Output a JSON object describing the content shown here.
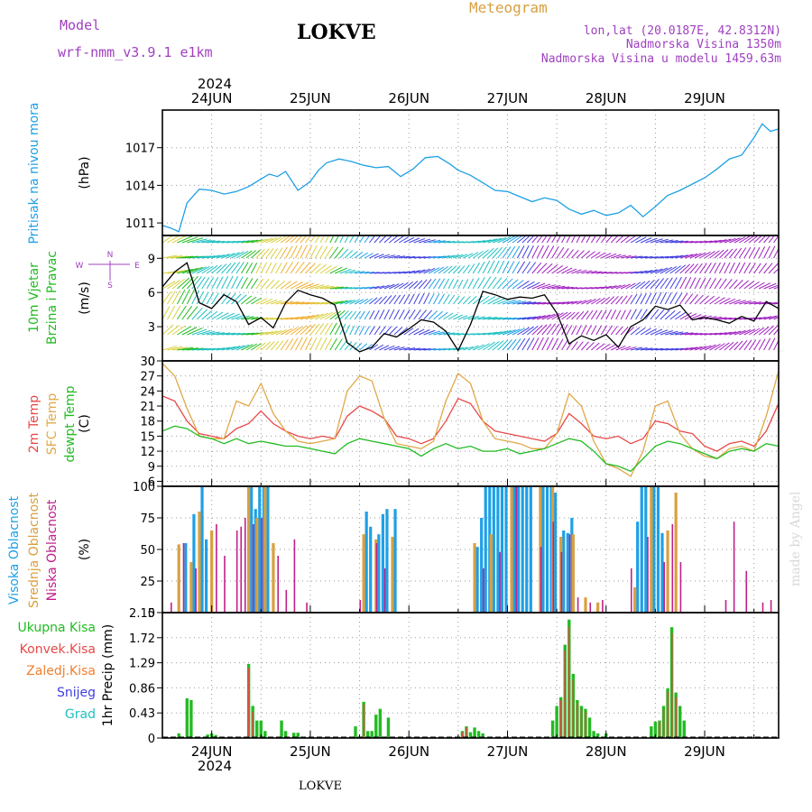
{
  "header": {
    "model_label": "Model",
    "model_name": "wrf-nmm_v3.9.1 e1km",
    "location": "LOKVE",
    "meteogram_label": "Meteogram",
    "lonlat": "lon,lat (20.0187E, 42.8312N)",
    "altitude": "Nadmorska Visina 1350m",
    "model_altitude": "Nadmorska Visina u modelu 1459.63m",
    "footer_location": "LOKVE",
    "credit": "made by Angel"
  },
  "colors": {
    "pressure": "#1ea0e6",
    "wind_label": "#22bb22",
    "temp_2m": "#e84848",
    "temp_sfc": "#e0a848",
    "dewpoint": "#22bb22",
    "cloud_high": "#1ea0e6",
    "cloud_mid": "#d8a040",
    "cloud_low": "#c0208a",
    "precip_total": "#22bb22",
    "precip_conv": "#e84848",
    "precip_nonconv": "#f08030",
    "precip_snow": "#4040e0",
    "precip_hail": "#20c0c0",
    "header_purple": "#a040c0",
    "header_gold": "#d8a040"
  },
  "time_axis": {
    "start": "2024-06-23 12:00",
    "end": "2024-06-29 18:00",
    "day_labels": [
      "24JUN",
      "25JUN",
      "26JUN",
      "27JUN",
      "28JUN",
      "29JUN"
    ],
    "year_label": "2024"
  },
  "chart_data": [
    {
      "type": "line",
      "title": "Pritisak na nivou mora",
      "ylabel": "(hPa)",
      "ylim": [
        1010,
        1020
      ],
      "yticks": [
        1011,
        1014,
        1017
      ],
      "grid": true,
      "series": [
        {
          "name": "Pritisak na nivou mora",
          "color": "#1ea0e6",
          "x_hours": [
            0,
            2,
            4,
            6,
            9,
            12,
            15,
            18,
            21,
            24,
            26,
            28,
            30,
            33,
            36,
            38,
            40,
            43,
            46,
            49,
            52,
            55,
            58,
            61,
            64,
            67,
            70,
            72,
            75,
            78,
            81,
            84,
            87,
            90,
            93,
            96,
            99,
            102,
            105,
            108,
            111,
            114,
            117,
            120,
            123,
            126,
            129,
            132,
            135,
            138,
            141,
            144,
            146,
            148,
            150
          ],
          "values": [
            1010.8,
            1010.6,
            1010.3,
            1012.6,
            1013.7,
            1013.6,
            1013.3,
            1013.5,
            1013.9,
            1014.5,
            1014.9,
            1014.7,
            1015.1,
            1013.6,
            1014.3,
            1015.2,
            1015.8,
            1016.1,
            1015.9,
            1015.6,
            1015.4,
            1015.5,
            1014.7,
            1015.3,
            1016.2,
            1016.3,
            1015.7,
            1015.2,
            1014.8,
            1014.2,
            1013.6,
            1013.5,
            1013.1,
            1012.7,
            1013.0,
            1012.8,
            1012.1,
            1011.7,
            1012.0,
            1011.6,
            1011.8,
            1012.4,
            1011.5,
            1012.3,
            1013.2,
            1013.6,
            1014.1,
            1014.6,
            1015.3,
            1016.1,
            1016.4,
            1017.8,
            1018.9,
            1018.3,
            1018.5
          ]
        }
      ]
    },
    {
      "type": "line",
      "title": "10m Vjetar Brzina i Pravac",
      "ylabel": "(m/s)",
      "ylim": [
        0,
        11
      ],
      "yticks": [
        0,
        3,
        6,
        9
      ],
      "compass": [
        "N",
        "E",
        "S",
        "W"
      ],
      "grid": true,
      "series": [
        {
          "name": "10m Vjetar",
          "color": "#000000",
          "x_hours": [
            0,
            3,
            6,
            9,
            12,
            15,
            18,
            21,
            24,
            27,
            30,
            33,
            36,
            39,
            42,
            45,
            48,
            51,
            54,
            57,
            60,
            63,
            66,
            69,
            72,
            75,
            78,
            81,
            84,
            87,
            90,
            93,
            96,
            99,
            102,
            105,
            108,
            111,
            114,
            117,
            120,
            123,
            126,
            129,
            132,
            135,
            138,
            141,
            144,
            147,
            150
          ],
          "values": [
            6.5,
            7.8,
            8.6,
            5.1,
            4.6,
            5.8,
            5.2,
            3.2,
            3.8,
            2.9,
            5.1,
            6.2,
            5.8,
            5.5,
            4.9,
            1.6,
            0.8,
            1.2,
            2.4,
            2.1,
            2.8,
            3.6,
            3.4,
            2.6,
            0.9,
            3.2,
            6.1,
            5.8,
            5.4,
            5.6,
            5.5,
            5.8,
            4.2,
            1.5,
            2.2,
            1.8,
            2.3,
            1.2,
            3.0,
            3.6,
            4.8,
            4.5,
            4.9,
            3.6,
            3.8,
            3.6,
            3.3,
            3.9,
            3.5,
            5.2,
            4.6
          ]
        }
      ],
      "barb_colors": [
        "#e84848",
        "#f0b030",
        "#d8d040",
        "#22bb22",
        "#20c0c0",
        "#1ea0e6",
        "#4040e0",
        "#a020c0"
      ]
    },
    {
      "type": "line",
      "title": "2m Temp / SFC Temp / dewpt Temp",
      "ylabel": "(C)",
      "ylim": [
        5,
        30
      ],
      "yticks": [
        6,
        9,
        12,
        15,
        18,
        21,
        24,
        27,
        30
      ],
      "grid": true,
      "series": [
        {
          "name": "2m Temp",
          "color": "#e84848",
          "x_hours": [
            0,
            3,
            6,
            9,
            12,
            15,
            18,
            21,
            24,
            27,
            30,
            33,
            36,
            39,
            42,
            45,
            48,
            51,
            54,
            57,
            60,
            63,
            66,
            69,
            72,
            75,
            78,
            81,
            84,
            87,
            90,
            93,
            96,
            99,
            102,
            105,
            108,
            111,
            114,
            117,
            120,
            123,
            126,
            129,
            132,
            135,
            138,
            141,
            144,
            147,
            150
          ],
          "values": [
            23.0,
            22.0,
            18.0,
            15.5,
            15.0,
            14.5,
            16.5,
            17.5,
            20.0,
            17.5,
            16.0,
            15.0,
            14.5,
            15.0,
            14.5,
            19.0,
            21.0,
            20.0,
            18.5,
            15.0,
            14.5,
            13.5,
            14.5,
            18.0,
            22.5,
            21.5,
            18.0,
            16.0,
            15.5,
            15.0,
            14.5,
            14.0,
            15.5,
            19.5,
            17.5,
            15.0,
            14.5,
            15.0,
            13.5,
            14.5,
            18.0,
            17.5,
            16.0,
            15.5,
            13.0,
            12.0,
            13.5,
            14.0,
            13.0,
            16.0,
            21.5
          ]
        },
        {
          "name": "SFC Temp",
          "color": "#e0a848",
          "x_hours": [
            0,
            3,
            6,
            9,
            12,
            15,
            18,
            21,
            24,
            27,
            30,
            33,
            36,
            39,
            42,
            45,
            48,
            51,
            54,
            57,
            60,
            63,
            66,
            69,
            72,
            75,
            78,
            81,
            84,
            87,
            90,
            93,
            96,
            99,
            102,
            105,
            108,
            111,
            114,
            117,
            120,
            123,
            126,
            129,
            132,
            135,
            138,
            141,
            144,
            147,
            150
          ],
          "values": [
            29.5,
            27.0,
            20.5,
            15.0,
            14.5,
            14.5,
            22.0,
            21.0,
            25.5,
            19.5,
            16.0,
            14.0,
            13.5,
            14.0,
            14.5,
            24.0,
            27.0,
            26.0,
            18.5,
            13.5,
            13.0,
            12.5,
            14.0,
            22.0,
            27.5,
            25.5,
            18.0,
            14.5,
            14.0,
            13.5,
            12.5,
            12.5,
            15.5,
            23.5,
            21.0,
            14.0,
            9.5,
            8.5,
            7.0,
            12.0,
            21.0,
            22.0,
            15.5,
            12.5,
            11.0,
            10.5,
            12.5,
            13.0,
            12.0,
            19.0,
            28.0
          ]
        },
        {
          "name": "dewpt Temp",
          "color": "#22bb22",
          "x_hours": [
            0,
            3,
            6,
            9,
            12,
            15,
            18,
            21,
            24,
            27,
            30,
            33,
            36,
            39,
            42,
            45,
            48,
            51,
            54,
            57,
            60,
            63,
            66,
            69,
            72,
            75,
            78,
            81,
            84,
            87,
            90,
            93,
            96,
            99,
            102,
            105,
            108,
            111,
            114,
            117,
            120,
            123,
            126,
            129,
            132,
            135,
            138,
            141,
            144,
            147,
            150
          ],
          "values": [
            16.0,
            17.0,
            16.5,
            15.0,
            14.5,
            13.5,
            14.5,
            13.5,
            14.0,
            13.5,
            13.0,
            13.0,
            12.5,
            12.0,
            11.5,
            13.5,
            14.5,
            14.0,
            13.5,
            13.0,
            12.5,
            11.0,
            12.5,
            13.5,
            12.5,
            13.0,
            12.0,
            12.0,
            12.5,
            11.5,
            12.0,
            12.5,
            13.5,
            14.5,
            14.0,
            12.0,
            9.5,
            9.0,
            8.0,
            10.5,
            13.0,
            14.0,
            13.5,
            12.5,
            11.5,
            10.5,
            12.0,
            12.5,
            12.0,
            13.5,
            13.0
          ]
        }
      ]
    },
    {
      "type": "bar",
      "title": "Visoka Oblacnost / Srednja Oblacnost / Niska Oblacnost",
      "ylabel": "(%)",
      "ylim": [
        0,
        100
      ],
      "yticks": [
        0,
        25,
        50,
        75,
        100
      ],
      "grid": true,
      "series": [
        {
          "name": "Visoka Oblacnost",
          "color": "#1ea0e6",
          "x_hours": [
            6,
            8,
            10,
            11,
            22,
            23,
            24,
            25,
            26,
            50,
            51,
            53,
            54,
            55,
            57,
            77,
            78,
            79,
            80,
            81,
            82,
            83,
            84,
            86,
            87,
            88,
            89,
            90,
            93,
            94,
            95,
            96,
            98,
            99,
            100,
            116,
            117,
            118,
            120,
            121,
            122
          ],
          "values": [
            55,
            78,
            100,
            58,
            100,
            82,
            100,
            100,
            100,
            80,
            68,
            62,
            78,
            82,
            82,
            52,
            75,
            100,
            100,
            100,
            100,
            100,
            100,
            100,
            100,
            100,
            100,
            100,
            100,
            100,
            100,
            95,
            65,
            63,
            75,
            72,
            100,
            100,
            100,
            100,
            63
          ]
        },
        {
          "name": "Srednja Oblacnost",
          "color": "#d8a040",
          "x_hours": [
            4,
            7,
            9,
            12,
            21,
            23,
            25,
            27,
            49,
            52,
            56,
            76,
            80,
            85,
            92,
            95,
            97,
            100,
            103,
            106,
            115,
            119,
            123,
            125
          ],
          "values": [
            54,
            40,
            80,
            65,
            100,
            75,
            100,
            55,
            62,
            58,
            60,
            55,
            62,
            100,
            100,
            100,
            60,
            62,
            12,
            8,
            20,
            100,
            65,
            95
          ]
        },
        {
          "name": "Niska Oblacnost",
          "color": "#c0208a",
          "x_hours": [
            2,
            5,
            8,
            13,
            15,
            18,
            19,
            20,
            22,
            24,
            28,
            30,
            32,
            35,
            48,
            52,
            54,
            78,
            82,
            86,
            92,
            95,
            97,
            99,
            101,
            104,
            107,
            114,
            118,
            122,
            124,
            126,
            137,
            139,
            142,
            146,
            148
          ],
          "values": [
            8,
            55,
            35,
            70,
            45,
            65,
            68,
            75,
            70,
            75,
            45,
            18,
            58,
            8,
            10,
            55,
            35,
            35,
            48,
            100,
            52,
            72,
            48,
            62,
            12,
            8,
            10,
            35,
            60,
            40,
            70,
            40,
            10,
            72,
            33,
            8,
            10
          ]
        }
      ]
    },
    {
      "type": "bar",
      "title": "Ukupna Kisa / Konvek.Kisa / Zaledj.Kisa / Snijeg / Grad",
      "ylabel": "1hr Precip (mm)",
      "ylim": [
        0,
        2.15
      ],
      "yticks": [
        0,
        0.43,
        0.86,
        1.29,
        1.72,
        2.15
      ],
      "ytick_labels": [
        "0",
        "0.43",
        "0.86",
        "1.29",
        "1.72",
        "2.15"
      ],
      "grid": true,
      "legend": [
        "Ukupna Kisa",
        "Konvek.Kisa",
        "Zaledj.Kisa",
        "Snijeg",
        "Grad"
      ],
      "series": [
        {
          "name": "Ukupna Kisa",
          "color": "#22bb22",
          "x_hours": [
            4,
            6,
            7,
            11,
            12,
            13,
            21,
            22,
            23,
            24,
            25,
            29,
            30,
            32,
            33,
            47,
            49,
            50,
            51,
            52,
            53,
            55,
            73,
            74,
            75,
            76,
            77,
            78,
            95,
            96,
            97,
            98,
            99,
            100,
            101,
            102,
            103,
            104,
            105,
            106,
            108,
            119,
            120,
            121,
            122,
            123,
            124,
            125,
            126,
            127
          ],
          "values": [
            0.08,
            0.68,
            0.65,
            0.06,
            0.08,
            0.05,
            1.27,
            0.55,
            0.3,
            0.3,
            0.12,
            0.3,
            0.12,
            0.09,
            0.09,
            0.2,
            0.62,
            0.12,
            0.12,
            0.4,
            0.5,
            0.35,
            0.12,
            0.2,
            0.1,
            0.18,
            0.12,
            0.08,
            0.3,
            0.55,
            0.7,
            1.6,
            2.03,
            1.1,
            0.65,
            0.55,
            0.5,
            0.35,
            0.12,
            0.08,
            0.08,
            0.2,
            0.28,
            0.3,
            0.55,
            0.85,
            1.9,
            0.78,
            0.55,
            0.3
          ]
        },
        {
          "name": "Konvek.Kisa",
          "color": "#e84848",
          "x_hours": [
            21,
            22,
            49,
            73,
            74,
            97,
            98,
            99,
            100,
            101,
            102,
            103,
            121,
            122,
            123,
            124,
            125
          ],
          "values": [
            1.2,
            0.45,
            0.58,
            0.1,
            0.18,
            0.65,
            1.5,
            1.9,
            1.0,
            0.6,
            0.5,
            0.45,
            0.28,
            0.5,
            0.8,
            1.8,
            0.7
          ]
        }
      ]
    }
  ]
}
